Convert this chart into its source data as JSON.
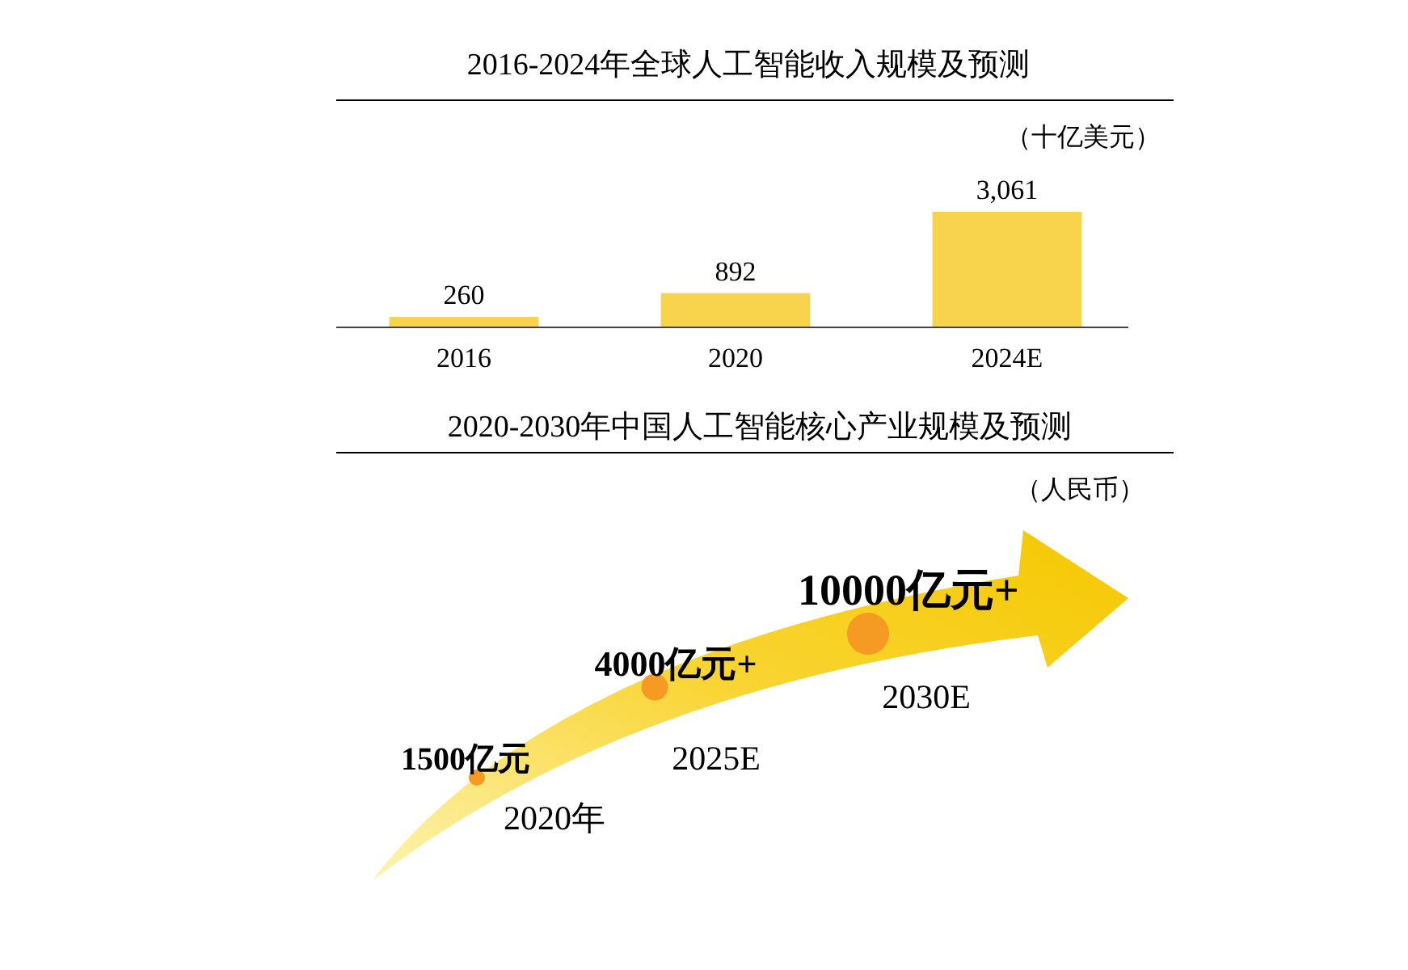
{
  "chart_data": [
    {
      "type": "bar",
      "title": "2016-2024年全球人工智能收入规模及预测",
      "subtitle": "（十亿美元）",
      "categories": [
        "2016",
        "2020",
        "2024E"
      ],
      "values": [
        260,
        892,
        3061
      ],
      "color": "#f7d44c",
      "data_labels": true,
      "value_labels": [
        "260",
        "892",
        "3,061"
      ]
    },
    {
      "type": "other",
      "title": "2020-2030年中国人工智能核心产业规模及预测",
      "subtitle": "（人民币）",
      "categories": [
        "2020年",
        "2025E",
        "2030E"
      ],
      "values": [
        1500,
        4000,
        10000
      ],
      "value_labels": [
        "1500亿元",
        "4000亿元+",
        "10000亿元+"
      ],
      "color": "#f59a23"
    }
  ]
}
